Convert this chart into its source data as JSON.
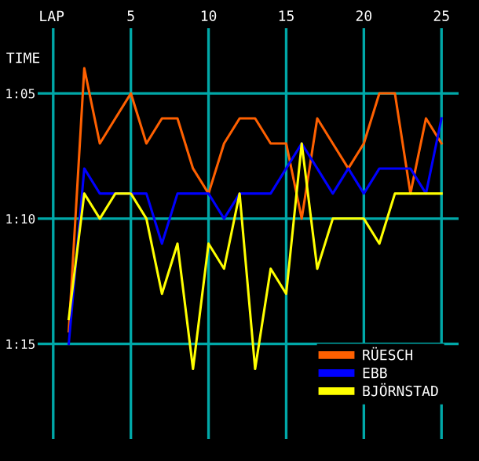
{
  "chart_data": {
    "type": "line",
    "xlabel": "LAP",
    "ylabel": "TIME",
    "x": [
      1,
      2,
      3,
      4,
      5,
      6,
      7,
      8,
      9,
      10,
      11,
      12,
      13,
      14,
      15,
      16,
      17,
      18,
      19,
      20,
      21,
      22,
      23,
      24,
      25
    ],
    "series": [
      {
        "name": "RÜESCH",
        "color": "#ff6000",
        "values": [
          74.5,
          64,
          67,
          66,
          65,
          67,
          66,
          66,
          68,
          69,
          67,
          66,
          66,
          67,
          67,
          70,
          66,
          67,
          68,
          67,
          65,
          65,
          69,
          66,
          67
        ]
      },
      {
        "name": "EBB",
        "color": "#0000ff",
        "values": [
          75,
          68,
          69,
          69,
          69,
          69,
          71,
          69,
          69,
          69,
          70,
          69,
          69,
          69,
          68,
          67,
          68,
          69,
          68,
          69,
          68,
          68,
          68,
          69,
          66
        ]
      },
      {
        "name": "BJÖRNSTAD",
        "color": "#ffff00",
        "values": [
          74,
          69,
          70,
          69,
          69,
          70,
          73,
          71,
          76,
          71,
          72,
          69,
          76,
          72,
          73,
          67,
          72,
          70,
          70,
          70,
          71,
          69,
          69,
          69,
          69
        ]
      }
    ],
    "xlim": [
      -1,
      26.1
    ],
    "xticks": [
      {
        "value": 0,
        "label": null
      },
      5,
      10,
      15,
      20,
      25
    ],
    "ylim": [
      78.8,
      62.4
    ],
    "yticks": [
      {
        "value": 65,
        "label": "1:05"
      },
      {
        "value": 70,
        "label": "1:10"
      },
      {
        "value": 75,
        "label": "1:15"
      }
    ],
    "grid": true,
    "legend": "bottom right",
    "marker": "none",
    "line_style": "solid"
  }
}
